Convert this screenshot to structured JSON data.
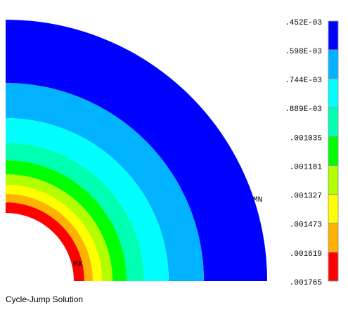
{
  "chart_data": {
    "type": "contour",
    "levels": [
      {
        "value": 0.000452,
        "label": ".452E-03"
      },
      {
        "value": 0.000598,
        "label": ".598E-03"
      },
      {
        "value": 0.000744,
        "label": ".744E-03"
      },
      {
        "value": 0.000889,
        "label": ".889E-03"
      },
      {
        "value": 0.001035,
        "label": ".001035"
      },
      {
        "value": 0.001181,
        "label": ".001181"
      },
      {
        "value": 0.001327,
        "label": ".001327"
      },
      {
        "value": 0.001473,
        "label": ".001473"
      },
      {
        "value": 0.001619,
        "label": ".001619"
      },
      {
        "value": 0.001765,
        "label": ".001765"
      }
    ],
    "colors": [
      "#0000ff",
      "#00b2ff",
      "#00ffff",
      "#00ffb2",
      "#00ff00",
      "#b2ff00",
      "#ffff00",
      "#ffb200",
      "#ff0000"
    ],
    "min_label": "MN",
    "max_label": "MX",
    "caption": "Cycle-Jump Solution"
  }
}
